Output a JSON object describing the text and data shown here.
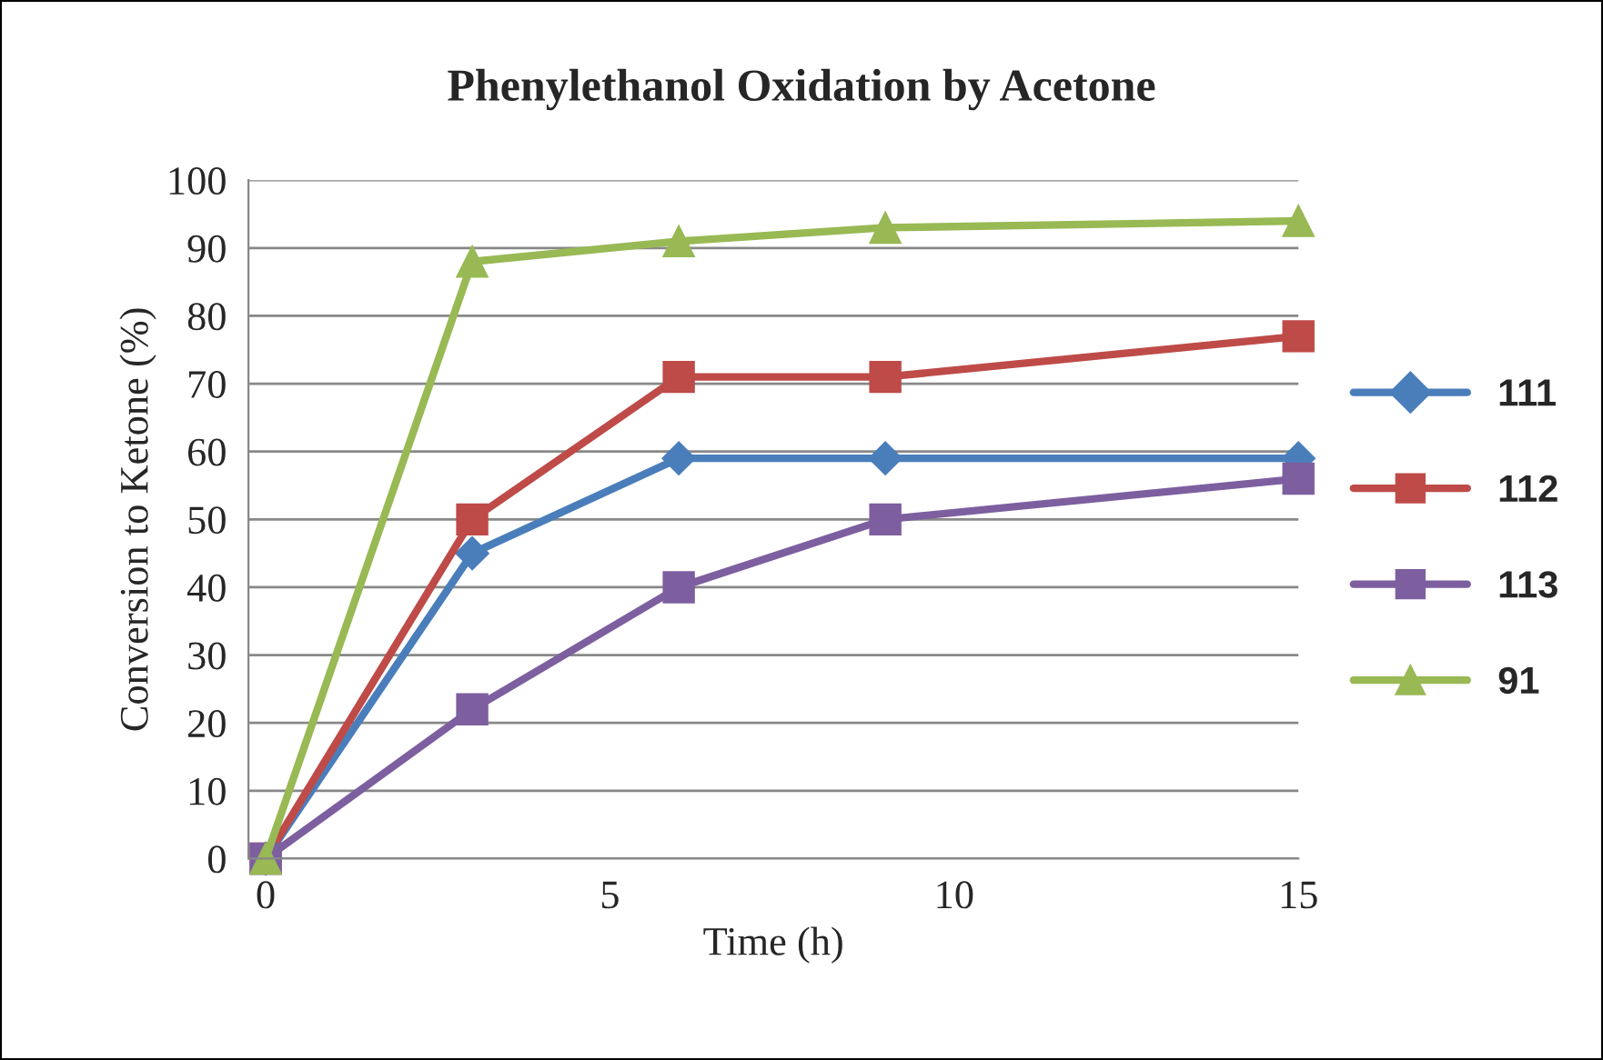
{
  "chart_data": {
    "type": "line",
    "title": "Phenylethanol Oxidation by Acetone",
    "xlabel": "Time (h)",
    "ylabel": "Conversion to Ketone (%)",
    "x": [
      0,
      3,
      6,
      9,
      15
    ],
    "series": [
      {
        "name": "111",
        "color": "#4a7ebb",
        "marker": "diamond",
        "values": [
          0,
          45,
          59,
          59,
          59
        ]
      },
      {
        "name": "112",
        "color": "#be4b48",
        "marker": "square",
        "values": [
          0,
          50,
          71,
          71,
          77
        ]
      },
      {
        "name": "113",
        "color": "#7d5fa0",
        "marker": "square",
        "values": [
          0,
          22,
          40,
          50,
          56
        ]
      },
      {
        "name": "91",
        "color": "#98b954",
        "marker": "triangle",
        "values": [
          0,
          88,
          91,
          93,
          94
        ]
      }
    ],
    "xlim": [
      -0.25,
      15
    ],
    "xticks": [
      0,
      5,
      10,
      15
    ],
    "ylim": [
      0,
      100
    ],
    "yticks": [
      0,
      10,
      20,
      30,
      40,
      50,
      60,
      70,
      80,
      90,
      100
    ],
    "grid": "y",
    "legend": "right",
    "line_style": "solid"
  }
}
